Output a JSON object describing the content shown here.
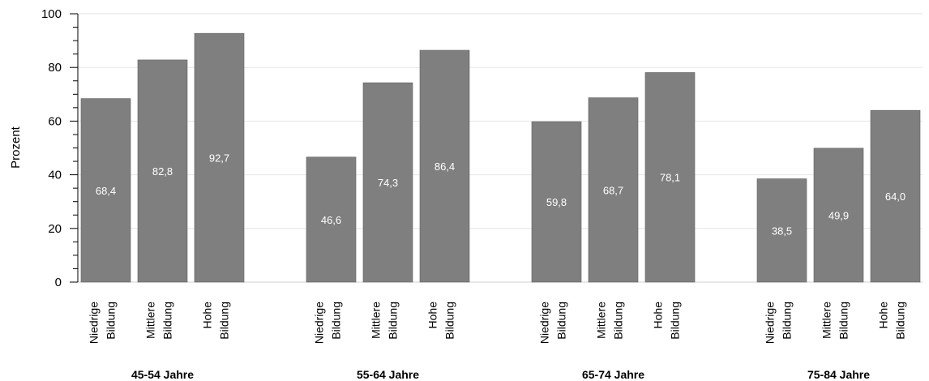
{
  "chart_data": {
    "type": "bar",
    "ylabel": "Prozent",
    "ylim": [
      0,
      100
    ],
    "yticks": [
      0,
      20,
      40,
      60,
      80,
      100
    ],
    "grid": true,
    "bar_color": "#7f7f7f",
    "label_color": "#ffffff",
    "groups": [
      {
        "name": "45-54 Jahre",
        "categories": [
          [
            "Niedrige",
            "Bildung"
          ],
          [
            "Mittlere",
            "Bildung"
          ],
          [
            "Hohe",
            "Bildung"
          ]
        ],
        "values": [
          68.4,
          82.8,
          92.7
        ],
        "labels": [
          "68,4",
          "82,8",
          "92,7"
        ]
      },
      {
        "name": "55-64 Jahre",
        "categories": [
          [
            "Niedrige",
            "Bildung"
          ],
          [
            "Mittlere",
            "Bildung"
          ],
          [
            "Hohe",
            "Bildung"
          ]
        ],
        "values": [
          46.6,
          74.3,
          86.4
        ],
        "labels": [
          "46,6",
          "74,3",
          "86,4"
        ]
      },
      {
        "name": "65-74 Jahre",
        "categories": [
          [
            "Niedrige",
            "Bildung"
          ],
          [
            "Mittlere",
            "Bildung"
          ],
          [
            "Hohe",
            "Bildung"
          ]
        ],
        "values": [
          59.8,
          68.7,
          78.1
        ],
        "labels": [
          "59,8",
          "68,7",
          "78,1"
        ]
      },
      {
        "name": "75-84 Jahre",
        "categories": [
          [
            "Niedrige",
            "Bildung"
          ],
          [
            "Mittlere",
            "Bildung"
          ],
          [
            "Hohe",
            "Bildung"
          ]
        ],
        "values": [
          38.5,
          49.9,
          64.0
        ],
        "labels": [
          "38,5",
          "49,9",
          "64,0"
        ]
      }
    ]
  }
}
